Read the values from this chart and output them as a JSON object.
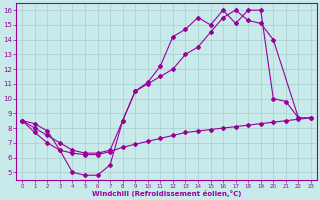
{
  "bg_color": "#c8eaea",
  "line_color": "#990099",
  "grid_color": "#aacccc",
  "xlabel": "Windchill (Refroidissement éolien,°C)",
  "xlim": [
    -0.5,
    23.5
  ],
  "ylim": [
    4.5,
    16.5
  ],
  "xticks": [
    0,
    1,
    2,
    3,
    4,
    5,
    6,
    7,
    8,
    9,
    10,
    11,
    12,
    13,
    14,
    15,
    16,
    17,
    18,
    19,
    20,
    21,
    22,
    23
  ],
  "yticks": [
    5,
    6,
    7,
    8,
    9,
    10,
    11,
    12,
    13,
    14,
    15,
    16
  ],
  "line1_x": [
    0,
    1,
    2,
    3,
    4,
    5,
    6,
    7,
    8,
    9,
    10,
    11,
    12,
    13,
    14,
    15,
    16,
    17,
    18,
    19,
    20,
    21,
    22
  ],
  "line1_y": [
    8.5,
    7.7,
    7.0,
    6.5,
    5.0,
    4.8,
    4.8,
    5.5,
    8.5,
    10.5,
    11.1,
    12.2,
    14.2,
    14.7,
    15.5,
    15.0,
    16.0,
    15.1,
    16.0,
    16.0,
    10.0,
    9.8,
    8.7
  ],
  "line2_x": [
    0,
    1,
    2,
    3,
    4,
    5,
    6,
    7,
    8,
    9,
    10,
    11,
    12,
    13,
    14,
    15,
    16,
    17,
    18,
    19,
    20,
    22,
    23
  ],
  "line2_y": [
    8.5,
    8.0,
    7.5,
    7.0,
    6.5,
    6.3,
    6.3,
    6.5,
    8.5,
    10.5,
    11.0,
    11.5,
    12.0,
    13.0,
    13.5,
    14.5,
    15.5,
    16.0,
    15.3,
    15.1,
    14.0,
    8.7,
    8.7
  ],
  "line3_x": [
    0,
    1,
    2,
    3,
    4,
    5,
    6,
    7,
    8,
    9,
    10,
    11,
    12,
    13,
    14,
    15,
    16,
    17,
    18,
    19,
    20,
    21,
    22,
    23
  ],
  "line3_y": [
    8.5,
    8.3,
    7.8,
    6.5,
    6.3,
    6.2,
    6.2,
    6.4,
    6.7,
    6.9,
    7.1,
    7.3,
    7.5,
    7.7,
    7.8,
    7.9,
    8.0,
    8.1,
    8.2,
    8.3,
    8.4,
    8.5,
    8.6,
    8.7
  ]
}
